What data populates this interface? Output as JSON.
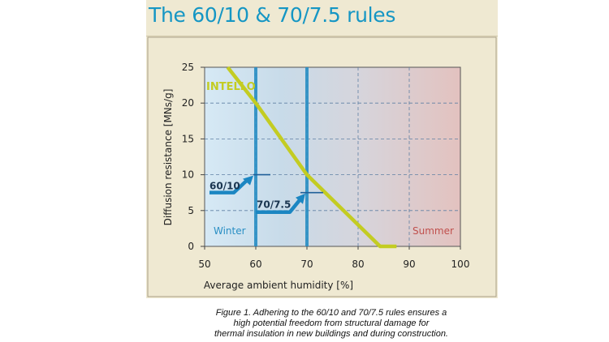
{
  "title": "The 60/10 & 70/7.5 rules",
  "caption": [
    "Figure 1. Adhering to the 60/10 and 70/7.5 rules ensures a",
    "high potential freedom from structural damage for",
    "thermal insulation in new buildings and during construction."
  ],
  "colors": {
    "title": "#1596c4",
    "curve": "#c3cc22",
    "arrow": "#1b86c2",
    "winter": "#2a8fc4",
    "summer": "#c0504d",
    "panel_bg": "#efe9d2"
  },
  "chart_data": {
    "type": "line",
    "xlabel": "Average ambient humidity [%]",
    "ylabel": "Diffusion resistance [MNs/g]",
    "xlim": [
      50,
      100
    ],
    "ylim": [
      0,
      25
    ],
    "x_ticks": [
      "50",
      "60",
      "70",
      "80",
      "90",
      "100"
    ],
    "y_ticks": [
      "0",
      "5",
      "10",
      "15",
      "20",
      "25"
    ],
    "grid": true,
    "series": [
      {
        "name": "INTELLO",
        "x": [
          54.5,
          60,
          70,
          84.3,
          87.5
        ],
        "y": [
          25,
          20,
          10,
          0,
          0
        ]
      }
    ],
    "annotations": [
      {
        "label": "60/10",
        "x": 60,
        "y": 10
      },
      {
        "label": "70/7.5",
        "x": 70,
        "y": 7.5
      }
    ],
    "region_labels": {
      "left": "Winter",
      "right": "Summer"
    }
  }
}
